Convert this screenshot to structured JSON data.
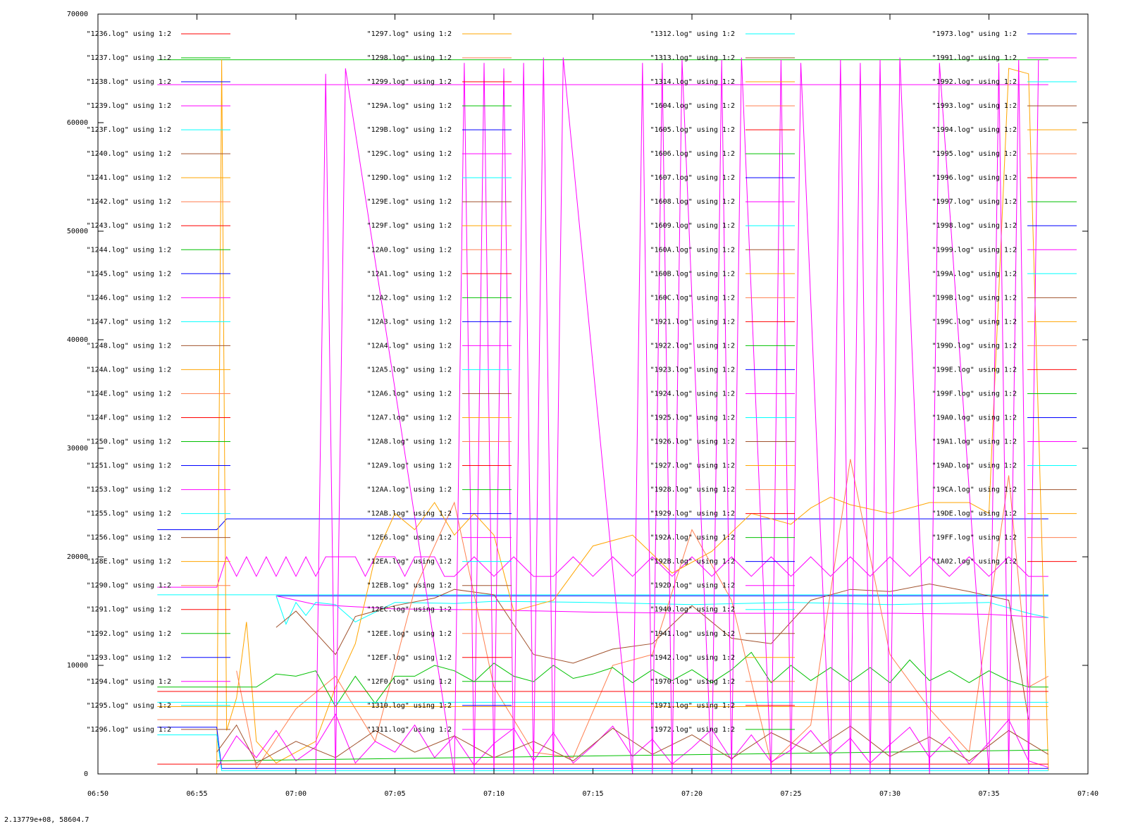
{
  "status_readout": "2.13779e+08,  58604.7",
  "chart_data": {
    "type": "line",
    "xlabel": "",
    "ylabel": "",
    "grid": false,
    "legend_placement": "inside, four columns across top",
    "xlim": [
      "06:50",
      "07:40"
    ],
    "ylim": [
      0,
      70000
    ],
    "x_ticks": [
      "06:50",
      "06:55",
      "07:00",
      "07:05",
      "07:10",
      "07:15",
      "07:20",
      "07:25",
      "07:30",
      "07:35",
      "07:40"
    ],
    "y_ticks": [
      0,
      10000,
      20000,
      30000,
      40000,
      50000,
      60000,
      70000
    ],
    "palette": [
      "#ff0000",
      "#00c000",
      "#0000ff",
      "#ff00ff",
      "#00ffff",
      "#a0522d",
      "#ffa500",
      "#ff7f50"
    ],
    "legend_columns": [
      [
        "\"1236.log\" using 1:2",
        "\"1237.log\" using 1:2",
        "\"1238.log\" using 1:2",
        "\"1239.log\" using 1:2",
        "\"123F.log\" using 1:2",
        "\"1240.log\" using 1:2",
        "\"1241.log\" using 1:2",
        "\"1242.log\" using 1:2",
        "\"1243.log\" using 1:2",
        "\"1244.log\" using 1:2",
        "\"1245.log\" using 1:2",
        "\"1246.log\" using 1:2",
        "\"1247.log\" using 1:2",
        "\"1248.log\" using 1:2",
        "\"124A.log\" using 1:2",
        "\"124E.log\" using 1:2",
        "\"124F.log\" using 1:2",
        "\"1250.log\" using 1:2",
        "\"1251.log\" using 1:2",
        "\"1253.log\" using 1:2",
        "\"1255.log\" using 1:2",
        "\"1256.log\" using 1:2",
        "\"128E.log\" using 1:2",
        "\"1290.log\" using 1:2",
        "\"1291.log\" using 1:2",
        "\"1292.log\" using 1:2",
        "\"1293.log\" using 1:2",
        "\"1294.log\" using 1:2",
        "\"1295.log\" using 1:2",
        "\"1296.log\" using 1:2"
      ],
      [
        "\"1297.log\" using 1:2",
        "\"1298.log\" using 1:2",
        "\"1299.log\" using 1:2",
        "\"129A.log\" using 1:2",
        "\"129B.log\" using 1:2",
        "\"129C.log\" using 1:2",
        "\"129D.log\" using 1:2",
        "\"129E.log\" using 1:2",
        "\"129F.log\" using 1:2",
        "\"12A0.log\" using 1:2",
        "\"12A1.log\" using 1:2",
        "\"12A2.log\" using 1:2",
        "\"12A3.log\" using 1:2",
        "\"12A4.log\" using 1:2",
        "\"12A5.log\" using 1:2",
        "\"12A6.log\" using 1:2",
        "\"12A7.log\" using 1:2",
        "\"12A8.log\" using 1:2",
        "\"12A9.log\" using 1:2",
        "\"12AA.log\" using 1:2",
        "\"12AB.log\" using 1:2",
        "\"12E6.log\" using 1:2",
        "\"12EA.log\" using 1:2",
        "\"12EB.log\" using 1:2",
        "\"12EC.log\" using 1:2",
        "\"12EE.log\" using 1:2",
        "\"12EF.log\" using 1:2",
        "\"12F0.log\" using 1:2",
        "\"1310.log\" using 1:2",
        "\"1311.log\" using 1:2"
      ],
      [
        "\"1312.log\" using 1:2",
        "\"1313.log\" using 1:2",
        "\"1314.log\" using 1:2",
        "\"1604.log\" using 1:2",
        "\"1605.log\" using 1:2",
        "\"1606.log\" using 1:2",
        "\"1607.log\" using 1:2",
        "\"1608.log\" using 1:2",
        "\"1609.log\" using 1:2",
        "\"160A.log\" using 1:2",
        "\"160B.log\" using 1:2",
        "\"160C.log\" using 1:2",
        "\"1921.log\" using 1:2",
        "\"1922.log\" using 1:2",
        "\"1923.log\" using 1:2",
        "\"1924.log\" using 1:2",
        "\"1925.log\" using 1:2",
        "\"1926.log\" using 1:2",
        "\"1927.log\" using 1:2",
        "\"1928.log\" using 1:2",
        "\"1929.log\" using 1:2",
        "\"192A.log\" using 1:2",
        "\"192B.log\" using 1:2",
        "\"192D.log\" using 1:2",
        "\"1940.log\" using 1:2",
        "\"1941.log\" using 1:2",
        "\"1942.log\" using 1:2",
        "\"1970.log\" using 1:2",
        "\"1971.log\" using 1:2",
        "\"1972.log\" using 1:2"
      ],
      [
        "\"1973.log\" using 1:2",
        "\"1991.log\" using 1:2",
        "\"1992.log\" using 1:2",
        "\"1993.log\" using 1:2",
        "\"1994.log\" using 1:2",
        "\"1995.log\" using 1:2",
        "\"1996.log\" using 1:2",
        "\"1997.log\" using 1:2",
        "\"1998.log\" using 1:2",
        "\"1999.log\" using 1:2",
        "\"199A.log\" using 1:2",
        "\"199B.log\" using 1:2",
        "\"199C.log\" using 1:2",
        "\"199D.log\" using 1:2",
        "\"199E.log\" using 1:2",
        "\"199F.log\" using 1:2",
        "\"19A0.log\" using 1:2",
        "\"19A1.log\" using 1:2",
        "\"19AD.log\" using 1:2",
        "\"19CA.log\" using 1:2",
        "\"19DE.log\" using 1:2",
        "\"19FF.log\" using 1:2",
        "\"1A02.log\" using 1:2"
      ]
    ],
    "series_overview": [
      {
        "color": "#00c000",
        "x": [
          "06:53",
          "07:38"
        ],
        "y": [
          65800,
          65800
        ]
      },
      {
        "color": "#ff00ff",
        "x": [
          "06:53",
          "07:38"
        ],
        "y": [
          63500,
          63500
        ]
      },
      {
        "color": "#0000ff",
        "x": [
          "06:53",
          "06:56",
          "06:56:30",
          "07:38"
        ],
        "y": [
          22500,
          22500,
          23500,
          23500
        ]
      },
      {
        "color": "#00ffff",
        "x": [
          "06:53",
          "07:38"
        ],
        "y": [
          16500,
          16500
        ]
      },
      {
        "color": "#0000ff",
        "x": [
          "06:59",
          "07:38"
        ],
        "y": [
          16400,
          16400
        ]
      },
      {
        "color": "#ff00ff",
        "x": [
          "06:53",
          "06:56",
          "06:56:30",
          "06:57",
          "06:57:30",
          "06:58",
          "06:58:30",
          "06:59",
          "06:59:30",
          "07:00",
          "07:00:30",
          "07:01",
          "07:01:30",
          "07:02",
          "07:03",
          "07:03:30",
          "07:04",
          "07:05",
          "07:05:30",
          "07:06",
          "07:07",
          "07:07:30",
          "07:08",
          "07:09",
          "07:10",
          "07:11",
          "07:12",
          "07:13",
          "07:14",
          "07:15",
          "07:16",
          "07:17",
          "07:18",
          "07:19",
          "07:20",
          "07:21",
          "07:22",
          "07:23",
          "07:24",
          "07:25",
          "07:26",
          "07:27",
          "07:28",
          "07:29",
          "07:30",
          "07:31",
          "07:32",
          "07:33",
          "07:34",
          "07:35",
          "07:36",
          "07:37",
          "07:38"
        ],
        "y": [
          17200,
          17200,
          20000,
          18200,
          20000,
          18200,
          20000,
          18200,
          20000,
          18200,
          20000,
          18200,
          20000,
          20000,
          20000,
          18200,
          20000,
          20000,
          18200,
          20000,
          20000,
          18200,
          18200,
          20000,
          18200,
          20000,
          18200,
          18200,
          20000,
          18200,
          20000,
          18200,
          20000,
          18200,
          20000,
          18200,
          20000,
          18200,
          20000,
          18200,
          20000,
          18200,
          20000,
          18200,
          20000,
          18200,
          20000,
          18200,
          20000,
          18200,
          20000,
          18200,
          18200
        ]
      },
      {
        "color": "#ff00ff",
        "x": [
          "06:59",
          "07:01",
          "07:05",
          "07:10",
          "07:15",
          "07:20",
          "07:25",
          "07:30",
          "07:35",
          "07:38"
        ],
        "y": [
          16400,
          15600,
          15200,
          15100,
          14900,
          14800,
          14800,
          14800,
          14700,
          14400
        ]
      },
      {
        "color": "#00ffff",
        "x": [
          "06:59",
          "06:59:30",
          "07:00",
          "07:00:30",
          "07:01",
          "07:02",
          "07:03",
          "07:05",
          "07:08",
          "07:10",
          "07:15",
          "07:20",
          "07:25",
          "07:30",
          "07:35",
          "07:37",
          "07:38"
        ],
        "y": [
          16400,
          13800,
          15800,
          14600,
          15800,
          15600,
          14000,
          15800,
          15700,
          15900,
          15800,
          15600,
          15800,
          15600,
          15800,
          14800,
          14400
        ]
      },
      {
        "color": "#a0522d",
        "x": [
          "06:59",
          "07:00",
          "07:01",
          "07:02",
          "07:03",
          "07:05",
          "07:07",
          "07:08",
          "07:10",
          "07:12",
          "07:14",
          "07:16",
          "07:18",
          "07:20",
          "07:22",
          "07:24",
          "07:26",
          "07:28",
          "07:30",
          "07:32",
          "07:34",
          "07:36",
          "07:37"
        ],
        "y": [
          13500,
          15000,
          13000,
          11000,
          14500,
          15500,
          16200,
          17000,
          16500,
          11000,
          10200,
          11500,
          12000,
          15500,
          12500,
          12000,
          16000,
          17000,
          16800,
          17500,
          16800,
          16000,
          5000
        ]
      },
      {
        "color": "#ffa500",
        "x": [
          "06:53",
          "06:56",
          "06:56:15",
          "06:56:30",
          "06:57",
          "06:57:30",
          "06:58",
          "06:59",
          "07:00",
          "07:01",
          "07:02",
          "07:03",
          "07:04",
          "07:05",
          "07:06",
          "07:07",
          "07:08",
          "07:09",
          "07:10",
          "07:11",
          "07:13",
          "07:15",
          "07:17",
          "07:19",
          "07:21",
          "07:23",
          "07:25",
          "07:26",
          "07:27",
          "07:28",
          "07:30",
          "07:32",
          "07:34",
          "07:35",
          "07:36",
          "07:37",
          "07:38"
        ],
        "y": [
          0,
          0,
          65800,
          4000,
          7000,
          14000,
          3000,
          1000,
          2000,
          3000,
          8000,
          12000,
          20000,
          24000,
          22500,
          25000,
          22000,
          24000,
          22000,
          15000,
          16000,
          21000,
          22000,
          18500,
          20500,
          24000,
          23000,
          24500,
          25500,
          24800,
          24000,
          25000,
          25000,
          24000,
          65000,
          64500,
          300
        ]
      },
      {
        "color": "#ff7f50",
        "x": [
          "06:57",
          "06:58",
          "07:00",
          "07:02",
          "07:04",
          "07:06",
          "07:08",
          "07:10",
          "07:12",
          "07:14",
          "07:16",
          "07:18",
          "07:20",
          "07:22",
          "07:24",
          "07:26",
          "07:28",
          "07:30",
          "07:32",
          "07:34",
          "07:36",
          "07:37",
          "07:38"
        ],
        "y": [
          9500,
          500,
          6000,
          9000,
          3000,
          17000,
          25000,
          8000,
          2000,
          1500,
          10000,
          11000,
          22500,
          16000,
          1000,
          4500,
          29000,
          11000,
          6000,
          2000,
          27500,
          8000,
          9000
        ]
      },
      {
        "color": "#00c000",
        "x": [
          "06:53",
          "06:57",
          "06:58",
          "06:59",
          "07:00",
          "07:01",
          "07:02",
          "07:03",
          "07:04",
          "07:05",
          "07:06",
          "07:07",
          "07:08",
          "07:09",
          "07:10",
          "07:11",
          "07:12",
          "07:13",
          "07:14",
          "07:15",
          "07:16",
          "07:17",
          "07:18",
          "07:19",
          "07:20",
          "07:21",
          "07:22",
          "07:23",
          "07:24",
          "07:25",
          "07:26",
          "07:27",
          "07:28",
          "07:29",
          "07:30",
          "07:31",
          "07:32",
          "07:33",
          "07:34",
          "07:35",
          "07:36",
          "07:37",
          "07:38"
        ],
        "y": [
          8000,
          8000,
          8000,
          9200,
          9000,
          9500,
          6200,
          9000,
          6500,
          9000,
          9000,
          10000,
          9500,
          8500,
          10200,
          9000,
          8500,
          10000,
          8800,
          9200,
          9800,
          8400,
          9600,
          8600,
          9600,
          8400,
          9600,
          11200,
          8400,
          10000,
          8600,
          9800,
          8500,
          9800,
          8400,
          10500,
          8600,
          9500,
          8400,
          9500,
          8600,
          8000,
          8000
        ]
      },
      {
        "color": "#ff0000",
        "x": [
          "06:53",
          "07:38"
        ],
        "y": [
          7600,
          7600
        ]
      },
      {
        "color": "#00ffff",
        "x": [
          "06:53",
          "07:38"
        ],
        "y": [
          6600,
          6600
        ]
      },
      {
        "color": "#ffa500",
        "x": [
          "06:53",
          "07:38"
        ],
        "y": [
          6200,
          6200
        ]
      },
      {
        "color": "#ff7f50",
        "x": [
          "06:53",
          "07:38"
        ],
        "y": [
          5000,
          5000
        ]
      },
      {
        "color": "#0000ff",
        "x": [
          "06:53",
          "06:56",
          "06:56:15",
          "07:38"
        ],
        "y": [
          4300,
          4300,
          500,
          500
        ]
      },
      {
        "color": "#00ffff",
        "x": [
          "06:53",
          "06:56",
          "06:56:15",
          "07:38"
        ],
        "y": [
          3600,
          3600,
          300,
          300
        ]
      },
      {
        "color": "#ff00ff",
        "x": [
          "06:56",
          "06:57",
          "06:58",
          "06:59",
          "07:00",
          "07:01",
          "07:02",
          "07:03",
          "07:04",
          "07:05",
          "07:06",
          "07:07",
          "07:08",
          "07:09",
          "07:10",
          "07:11",
          "07:12",
          "07:13",
          "07:14",
          "07:15",
          "07:16",
          "07:17",
          "07:18",
          "07:19",
          "07:20",
          "07:21",
          "07:22",
          "07:23",
          "07:24",
          "07:25",
          "07:26",
          "07:27",
          "07:28",
          "07:29",
          "07:30",
          "07:31",
          "07:32",
          "07:33",
          "07:34",
          "07:35",
          "07:36",
          "07:37",
          "07:38"
        ],
        "y": [
          500,
          3500,
          1500,
          4000,
          1200,
          2500,
          5500,
          1000,
          3000,
          2000,
          4500,
          1500,
          3500,
          800,
          2800,
          4200,
          1200,
          3800,
          1000,
          2600,
          4400,
          1600,
          3200,
          900,
          2400,
          4100,
          1300,
          3600,
          1100,
          2200,
          4000,
          1700,
          3300,
          1000,
          2700,
          4300,
          1500,
          3400,
          900,
          2900,
          5000,
          1200,
          600
        ]
      },
      {
        "color": "#ff0000",
        "x": [
          "06:53",
          "07:38"
        ],
        "y": [
          900,
          900
        ]
      },
      {
        "color": "#00c000",
        "x": [
          "06:56",
          "07:38"
        ],
        "y": [
          1200,
          2200
        ]
      },
      {
        "color": "#a0522d",
        "x": [
          "06:56",
          "06:57",
          "06:58",
          "07:00",
          "07:02",
          "07:04",
          "07:06",
          "07:08",
          "07:10",
          "07:12",
          "07:14",
          "07:16",
          "07:18",
          "07:20",
          "07:22",
          "07:24",
          "07:26",
          "07:28",
          "07:30",
          "07:32",
          "07:34",
          "07:36",
          "07:38"
        ],
        "y": [
          2000,
          4500,
          1000,
          3000,
          1500,
          4000,
          2000,
          3500,
          1500,
          3000,
          1200,
          4200,
          1800,
          3600,
          1400,
          3800,
          2000,
          4400,
          1600,
          3400,
          1200,
          4000,
          1800
        ]
      },
      {
        "color": "#ff00ff",
        "x": [
          "07:01",
          "07:01:30",
          "07:02",
          "07:02:30",
          "07:08",
          "07:08:30",
          "07:09",
          "07:09:30",
          "07:10",
          "07:10:30",
          "07:11",
          "07:11:30",
          "07:12",
          "07:12:30",
          "07:13",
          "07:13:30",
          "07:17",
          "07:17:30",
          "07:18",
          "07:18:30",
          "07:19",
          "07:19:30",
          "07:21",
          "07:21:30",
          "07:22",
          "07:22:30",
          "07:24",
          "07:24:30",
          "07:25",
          "07:25:30",
          "07:27",
          "07:27:30",
          "07:28",
          "07:28:30",
          "07:29",
          "07:29:30",
          "07:30",
          "07:30:30",
          "07:32",
          "07:32:30",
          "07:35",
          "07:35:30",
          "07:36",
          "07:36:30",
          "07:37",
          "07:37:30"
        ],
        "y": [
          0,
          64500,
          0,
          65000,
          0,
          65500,
          0,
          65500,
          0,
          65000,
          0,
          65500,
          0,
          66000,
          0,
          66000,
          0,
          65500,
          0,
          65500,
          0,
          65800,
          0,
          65800,
          0,
          66000,
          0,
          65800,
          0,
          65500,
          0,
          65800,
          0,
          65500,
          0,
          65800,
          0,
          66000,
          0,
          65500,
          0,
          65500,
          0,
          65800,
          0,
          65800
        ]
      }
    ]
  }
}
